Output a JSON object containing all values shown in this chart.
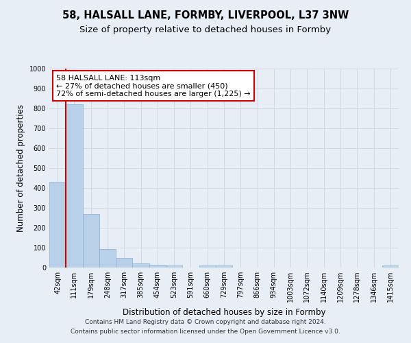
{
  "title": "58, HALSALL LANE, FORMBY, LIVERPOOL, L37 3NW",
  "subtitle": "Size of property relative to detached houses in Formby",
  "xlabel": "Distribution of detached houses by size in Formby",
  "ylabel": "Number of detached properties",
  "categories": [
    "42sqm",
    "111sqm",
    "179sqm",
    "248sqm",
    "317sqm",
    "385sqm",
    "454sqm",
    "523sqm",
    "591sqm",
    "660sqm",
    "729sqm",
    "797sqm",
    "866sqm",
    "934sqm",
    "1003sqm",
    "1072sqm",
    "1140sqm",
    "1209sqm",
    "1278sqm",
    "1346sqm",
    "1415sqm"
  ],
  "values": [
    430,
    820,
    270,
    93,
    48,
    22,
    13,
    10,
    0,
    10,
    10,
    0,
    0,
    0,
    0,
    0,
    0,
    0,
    0,
    0,
    10
  ],
  "bar_color": "#b8d0e8",
  "bar_edgecolor": "#8ab0cc",
  "vline_color": "#cc0000",
  "annotation_line1": "58 HALSALL LANE: 113sqm",
  "annotation_line2": "← 27% of detached houses are smaller (450)",
  "annotation_line3": "72% of semi-detached houses are larger (1,225) →",
  "annotation_box_color": "#ffffff",
  "annotation_box_edgecolor": "#cc0000",
  "ylim": [
    0,
    1000
  ],
  "yticks": [
    0,
    100,
    200,
    300,
    400,
    500,
    600,
    700,
    800,
    900,
    1000
  ],
  "grid_color": "#d0d8e4",
  "background_color": "#e8eef6",
  "footer_line1": "Contains HM Land Registry data © Crown copyright and database right 2024.",
  "footer_line2": "Contains public sector information licensed under the Open Government Licence v3.0.",
  "title_fontsize": 10.5,
  "subtitle_fontsize": 9.5,
  "tick_fontsize": 7,
  "ylabel_fontsize": 8.5,
  "xlabel_fontsize": 8.5,
  "annotation_fontsize": 8,
  "footer_fontsize": 6.5
}
